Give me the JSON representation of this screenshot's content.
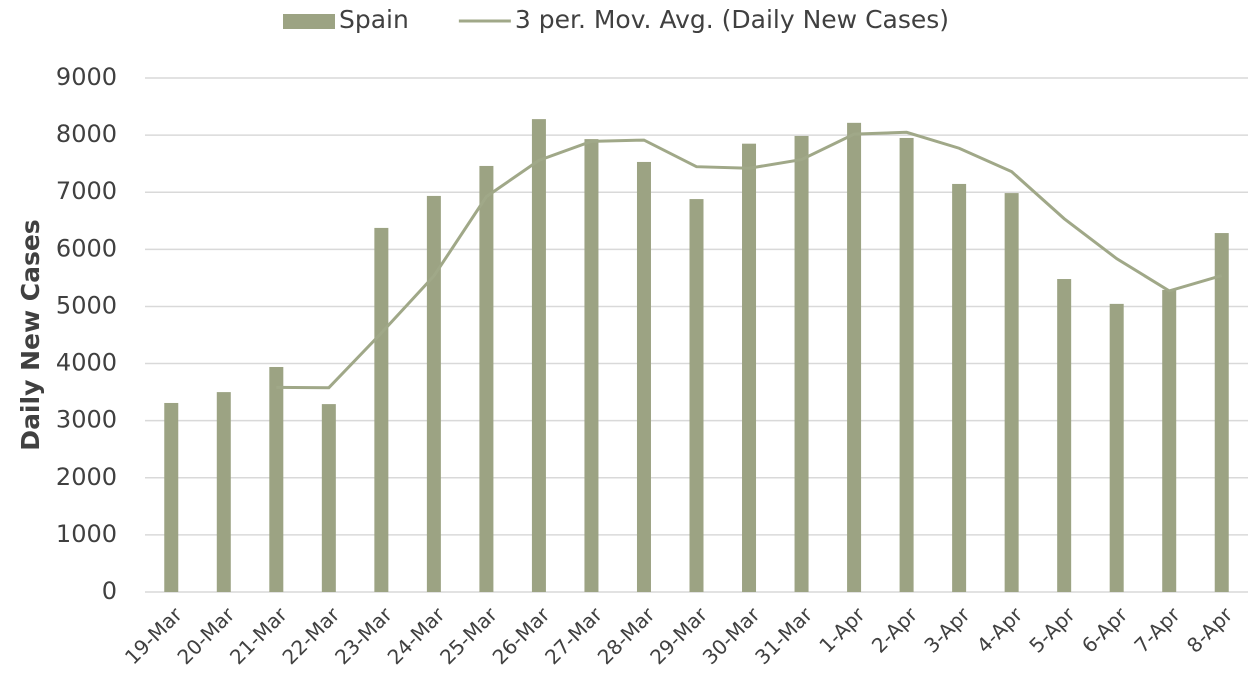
{
  "chart_data": {
    "type": "bar_line",
    "y_label": "Daily New Cases",
    "categories": [
      "19-Mar",
      "20-Mar",
      "21-Mar",
      "22-Mar",
      "23-Mar",
      "24-Mar",
      "25-Mar",
      "26-Mar",
      "27-Mar",
      "28-Mar",
      "29-Mar",
      "30-Mar",
      "31-Mar",
      "1-Apr",
      "2-Apr",
      "3-Apr",
      "4-Apr",
      "5-Apr",
      "6-Apr",
      "7-Apr",
      "8-Apr"
    ],
    "series": [
      {
        "name": "Spain",
        "type": "bar",
        "color": "#9ca383",
        "values": [
          3310,
          3500,
          3940,
          3290,
          6375,
          6935,
          7460,
          8280,
          7930,
          7530,
          6880,
          7850,
          7985,
          8215,
          7950,
          7145,
          6985,
          5480,
          5045,
          5290,
          6285
        ]
      },
      {
        "name": "3 per. Mov. Avg. (Daily New Cases)",
        "type": "line",
        "color": "#a0a888",
        "values": [
          null,
          null,
          3583,
          3577,
          4535,
          5533,
          6923,
          7558,
          7890,
          7913,
          7447,
          7420,
          7572,
          8017,
          8050,
          7770,
          7360,
          6537,
          5837,
          5272,
          5540
        ]
      }
    ],
    "ylim": [
      0,
      9000
    ],
    "yticks": [
      0,
      1000,
      2000,
      3000,
      4000,
      5000,
      6000,
      7000,
      8000,
      9000
    ],
    "grid": true,
    "legend": "top"
  }
}
